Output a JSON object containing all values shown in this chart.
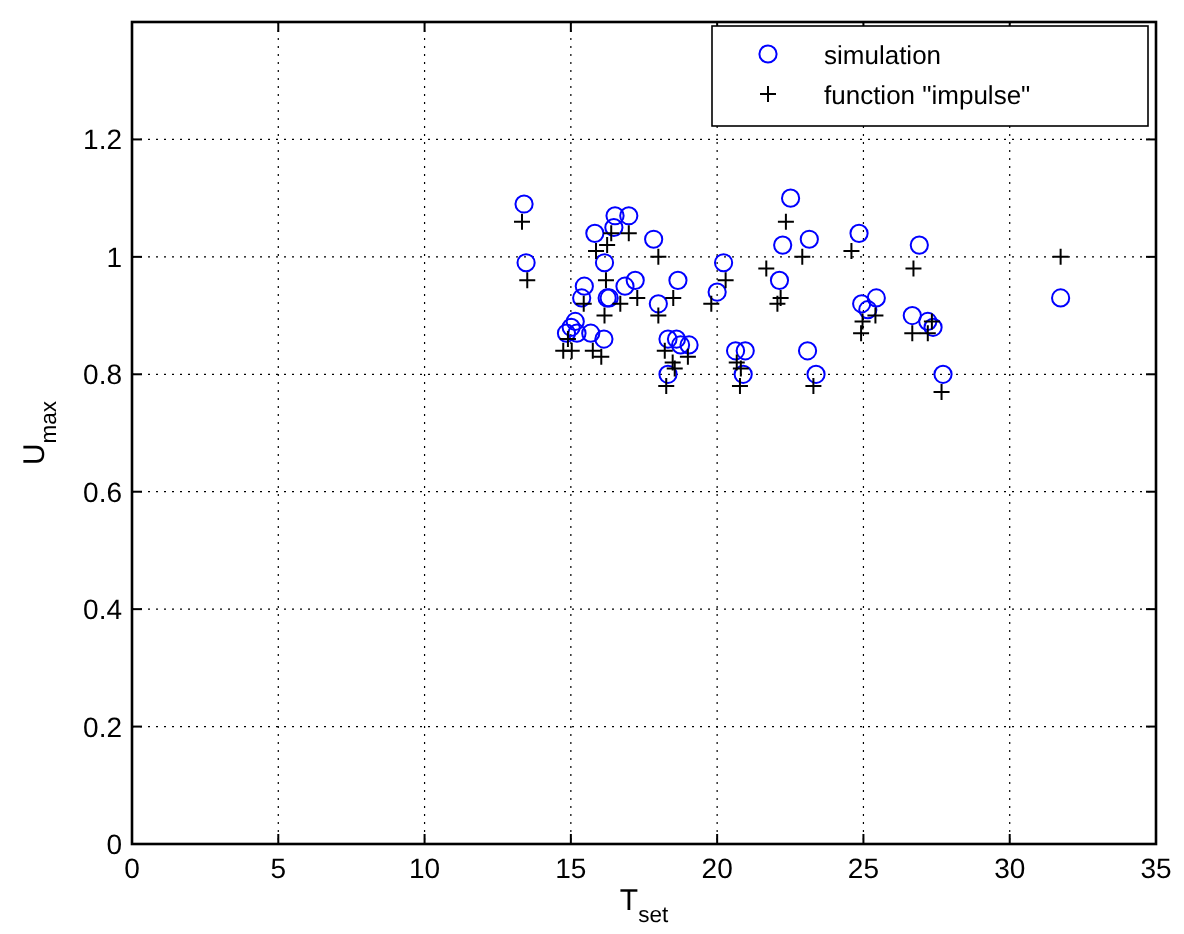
{
  "chart_data": {
    "type": "scatter",
    "xlabel": "T$_{set}$",
    "ylabel": "U$_{max}$",
    "xlim": [
      0,
      35
    ],
    "ylim": [
      0,
      1.4
    ],
    "xticks": [
      0,
      5,
      10,
      15,
      20,
      25,
      30,
      35
    ],
    "yticks": [
      0,
      0.2,
      0.4,
      0.6,
      0.8,
      1,
      1.2
    ],
    "grid": true,
    "legend": "top right",
    "series": [
      {
        "name": "simulation",
        "color": "#0000ff",
        "marker": "circle",
        "x": [
          13.4,
          13.47,
          14.85,
          15.01,
          15.15,
          15.21,
          15.46,
          15.37,
          15.68,
          15.82,
          16.13,
          16.15,
          16.24,
          16.31,
          16.47,
          16.51,
          16.85,
          16.98,
          17.2,
          17.83,
          17.99,
          18.32,
          18.61,
          18.75,
          19.04,
          18.32,
          18.66,
          20.0,
          20.22,
          20.63,
          20.96,
          20.89,
          22.13,
          22.24,
          22.51,
          23.15,
          23.09,
          23.38,
          24.85,
          24.94,
          25.15,
          25.44,
          26.67,
          26.91,
          27.2,
          27.38,
          27.72,
          31.74
        ],
        "values": [
          1.09,
          0.99,
          0.87,
          0.88,
          0.89,
          0.87,
          0.95,
          0.93,
          0.87,
          1.04,
          0.86,
          0.99,
          0.93,
          0.93,
          1.05,
          1.07,
          0.95,
          1.07,
          0.96,
          1.03,
          0.92,
          0.86,
          0.86,
          0.85,
          0.85,
          0.8,
          0.96,
          0.94,
          0.99,
          0.84,
          0.84,
          0.8,
          0.96,
          1.02,
          1.1,
          1.03,
          0.84,
          0.8,
          1.04,
          0.92,
          0.91,
          0.93,
          0.9,
          1.02,
          0.89,
          0.88,
          0.8,
          0.93
        ]
      },
      {
        "name": "function \"impulse\"",
        "color": "#000000",
        "marker": "cross",
        "x": [
          13.33,
          13.51,
          14.74,
          15.03,
          14.9,
          15.44,
          15.75,
          15.86,
          16.04,
          16.2,
          16.15,
          16.24,
          16.38,
          16.69,
          16.98,
          17.27,
          17.99,
          17.99,
          18.21,
          18.48,
          18.55,
          18.26,
          19.0,
          18.5,
          19.8,
          20.29,
          20.67,
          20.81,
          20.78,
          21.68,
          22.06,
          22.17,
          22.35,
          22.91,
          23.29,
          24.59,
          24.97,
          24.92,
          25.41,
          26.71,
          26.67,
          27.2,
          27.34,
          27.67,
          31.74
        ],
        "values": [
          1.06,
          0.96,
          0.84,
          0.84,
          0.86,
          0.92,
          0.84,
          1.01,
          0.83,
          0.96,
          0.9,
          1.02,
          1.04,
          0.92,
          1.04,
          0.93,
          1.0,
          0.9,
          0.84,
          0.82,
          0.81,
          0.78,
          0.83,
          0.93,
          0.92,
          0.96,
          0.82,
          0.81,
          0.78,
          0.98,
          0.92,
          0.93,
          1.06,
          1.0,
          0.78,
          1.01,
          0.89,
          0.87,
          0.9,
          0.98,
          0.87,
          0.87,
          0.89,
          0.77,
          1.0
        ]
      }
    ]
  }
}
